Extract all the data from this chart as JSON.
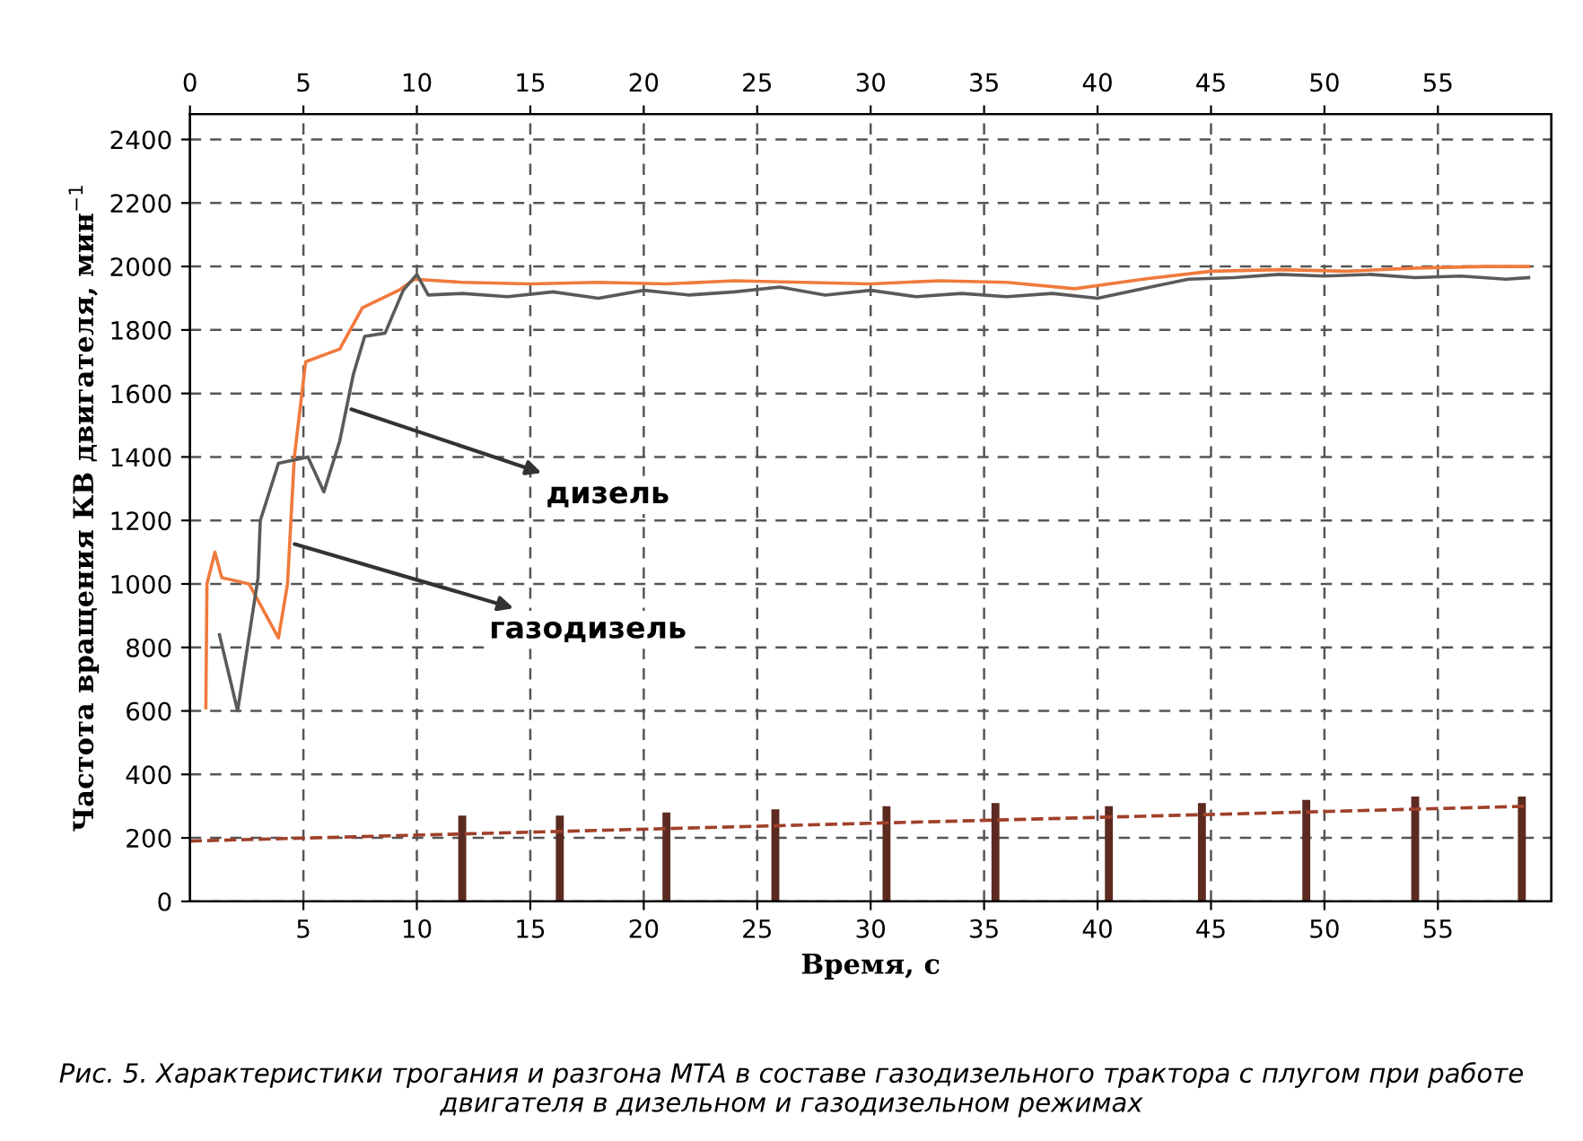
{
  "chart_data": {
    "type": "line",
    "xlabel": "Время, с",
    "ylabel": "Частота вращения КВ двигателя, мин$^{−1}$",
    "annotations": [
      {
        "text": "дизель",
        "x": 6.9,
        "y": 1555
      },
      {
        "text": "газодизель",
        "x": 4.4,
        "y": 1130
      },
      "Рис. 5. Характеристики трогания и разгона МТА в составе газодизельного трактора с плугом при работе двигателя в дизельном и газодизельном режимах"
    ],
    "series": [
      {
        "color": "#f07a3c",
        "x": [
          0.7,
          0.75,
          1.1,
          1.4,
          2.6,
          3.9,
          4.3,
          4.6,
          5.1,
          6.6,
          7.6,
          9.2,
          9.9,
          12,
          15,
          18,
          21,
          24,
          27,
          30,
          33,
          36,
          39,
          42,
          45,
          48,
          51,
          54,
          57,
          59
        ],
        "values": [
          610,
          1000,
          1100,
          1020,
          1000,
          830,
          1000,
          1400,
          1700,
          1740,
          1870,
          1925,
          1960,
          1950,
          1945,
          1950,
          1945,
          1955,
          1950,
          1945,
          1955,
          1950,
          1930,
          1960,
          1985,
          1990,
          1985,
          1995,
          2000,
          2000
        ]
      },
      {
        "color": "#5a5a5a",
        "x": [
          1.3,
          2.1,
          3.0,
          3.1,
          3.9,
          5.2,
          5.9,
          6.6,
          7.2,
          7.7,
          8.6,
          9.4,
          10.0,
          10.5,
          12,
          14,
          16,
          18,
          20,
          22,
          24,
          26,
          28,
          30,
          32,
          34,
          36,
          38,
          40,
          42,
          44,
          46,
          48,
          50,
          52,
          54,
          56,
          58,
          59
        ],
        "values": [
          840,
          600,
          1020,
          1200,
          1380,
          1400,
          1290,
          1450,
          1660,
          1780,
          1790,
          1925,
          1975,
          1910,
          1915,
          1905,
          1920,
          1900,
          1925,
          1910,
          1920,
          1935,
          1910,
          1925,
          1905,
          1915,
          1905,
          1915,
          1900,
          1930,
          1960,
          1965,
          1975,
          1970,
          1975,
          1965,
          1970,
          1960,
          1965
        ]
      },
      {
        "type": "bar",
        "color": "#5c2a20",
        "x": [
          12,
          16.3,
          21,
          25.8,
          30.7,
          35.5,
          40.5,
          44.6,
          49.2,
          54,
          58.7
        ],
        "values": [
          270,
          270,
          280,
          290,
          300,
          310,
          300,
          310,
          320,
          330,
          330
        ]
      },
      {
        "color": "#a0402a",
        "line_style": "dashed",
        "x": [
          0,
          59
        ],
        "values": [
          190,
          300
        ]
      }
    ],
    "xlim": [
      0,
      60
    ],
    "xticks": [
      5,
      10,
      15,
      20,
      25,
      30,
      35,
      40,
      45,
      50,
      55
    ],
    "x2lim": [
      0,
      60
    ],
    "x2ticks": [
      0,
      5,
      10,
      15,
      20,
      25,
      30,
      35,
      40,
      45,
      50,
      55
    ],
    "ylim": [
      0,
      2480
    ],
    "yticks": [
      0,
      200,
      400,
      600,
      800,
      1000,
      1200,
      1400,
      1600,
      1800,
      2000,
      2200,
      2400
    ],
    "grid": true
  }
}
